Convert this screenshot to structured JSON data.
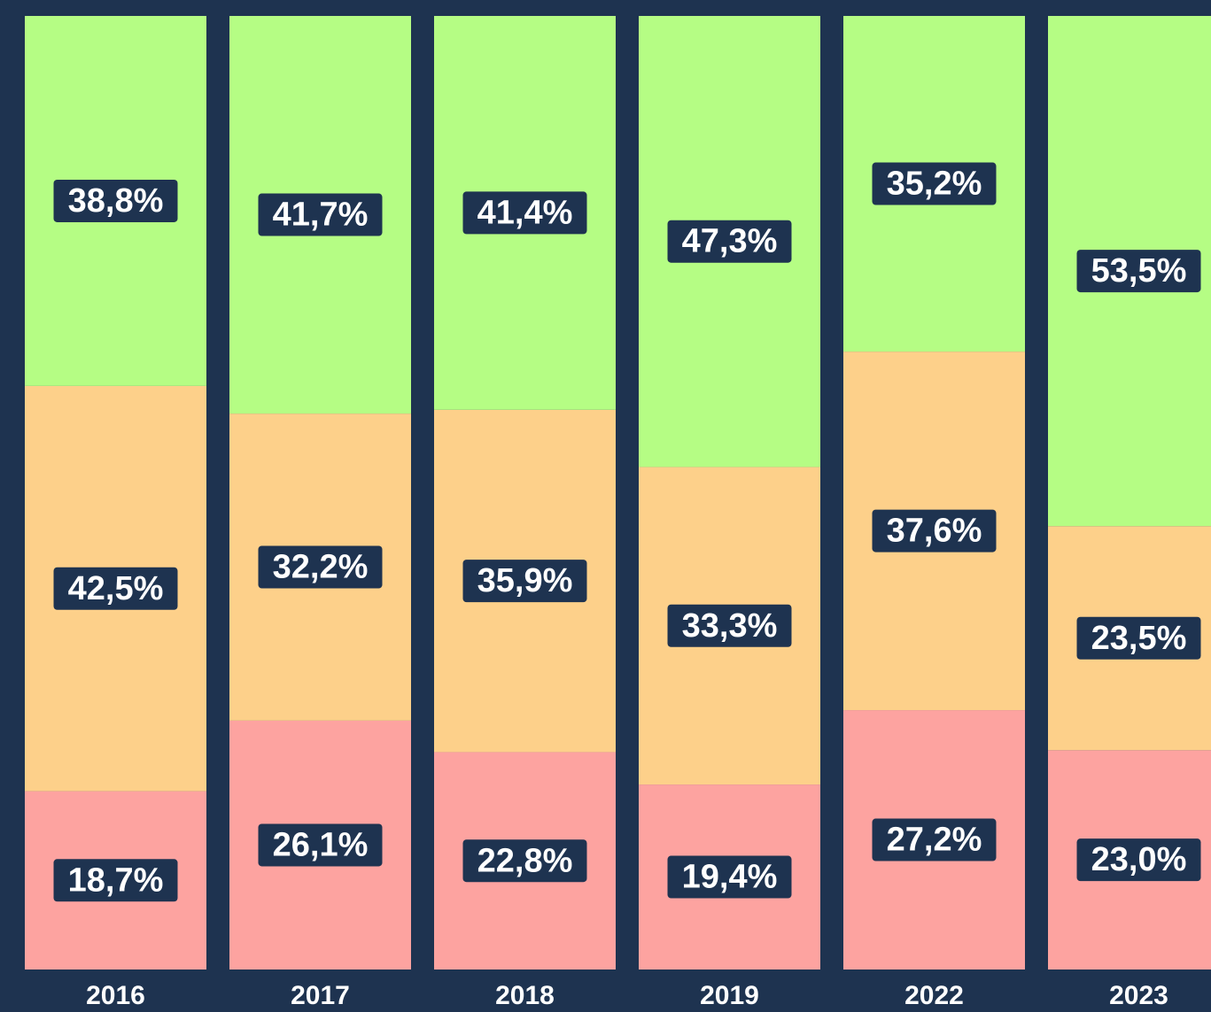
{
  "chart_data": {
    "type": "stacked_bar",
    "categories": [
      "2016",
      "2017",
      "2018",
      "2019",
      "2022",
      "2023"
    ],
    "ylim": [
      0,
      100
    ],
    "series": [
      {
        "color": "#fda3a0",
        "values": [
          18.7,
          26.1,
          22.8,
          19.4,
          27.2,
          23.0
        ],
        "value_labels": [
          "18,7%",
          "26,1%",
          "22,8%",
          "19,4%",
          "27,2%",
          "23,0%"
        ]
      },
      {
        "color": "#fdd08a",
        "values": [
          42.5,
          32.2,
          35.9,
          33.3,
          37.6,
          23.5
        ],
        "value_labels": [
          "42,5%",
          "32,2%",
          "35,9%",
          "33,3%",
          "37,6%",
          "23,5%"
        ]
      },
      {
        "color": "#b5fd84",
        "values": [
          38.8,
          41.7,
          41.4,
          47.3,
          35.2,
          53.5
        ],
        "value_labels": [
          "38,8%",
          "41,7%",
          "41,4%",
          "47,3%",
          "35,2%",
          "53,5%"
        ]
      }
    ]
  }
}
